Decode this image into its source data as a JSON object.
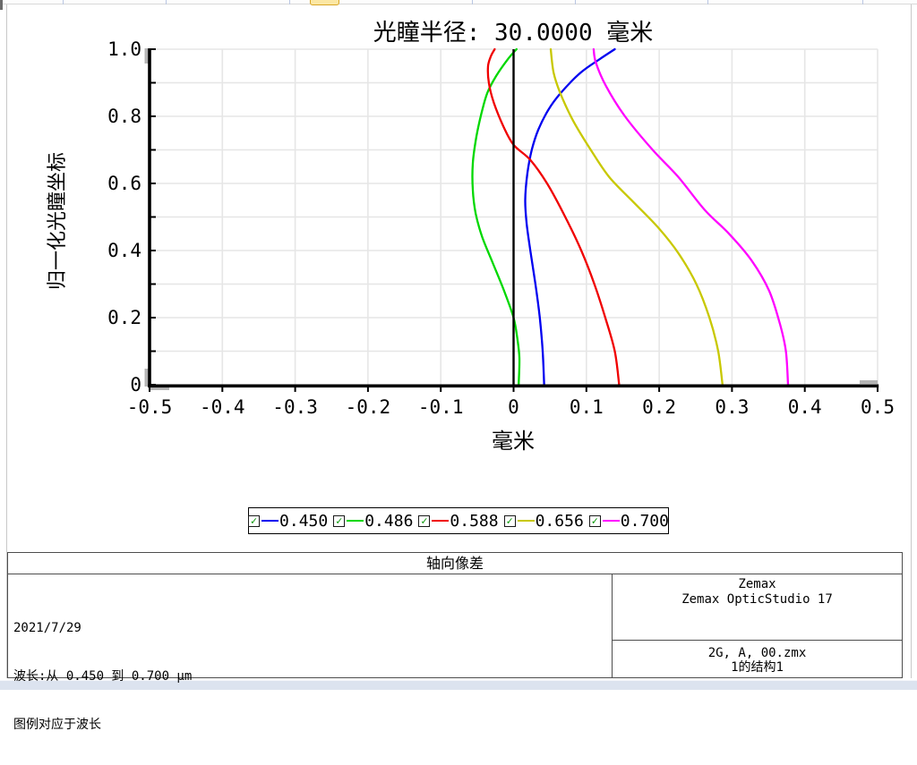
{
  "chart": {
    "title": "光瞳半径: 30.0000 毫米"
  },
  "chart_data": {
    "type": "line",
    "title": "光瞳半径: 30.0000 毫米",
    "xlabel": "毫米",
    "ylabel": "归一化光瞳坐标",
    "xlim": [
      -0.5,
      0.5
    ],
    "ylim": [
      0,
      1
    ],
    "grid": true,
    "legend_position": "bottom",
    "x_tick_labels": [
      "-0.5",
      "-0.4",
      "-0.3",
      "-0.2",
      "-0.1",
      "0",
      "0.1",
      "0.2",
      "0.3",
      "0.4",
      "0.5"
    ],
    "x_ticks": [
      -0.5,
      -0.4,
      -0.3,
      -0.2,
      -0.1,
      0,
      0.1,
      0.2,
      0.3,
      0.4,
      0.5
    ],
    "y_tick_labels": [
      "0",
      "0.2",
      "0.4",
      "0.6",
      "0.8",
      "1.0"
    ],
    "y_label_ticks": [
      0,
      0.2,
      0.4,
      0.6,
      0.8,
      1.0
    ],
    "y_minor_ticks": [
      0,
      0.1,
      0.2,
      0.3,
      0.4,
      0.5,
      0.6,
      0.7,
      0.8,
      0.9,
      1.0
    ],
    "zero_axis_x": 0,
    "series": [
      {
        "name": "0.450",
        "color": "#0000f0",
        "points": [
          [
            0.042,
            0.0
          ],
          [
            0.04,
            0.1
          ],
          [
            0.036,
            0.2
          ],
          [
            0.03,
            0.3
          ],
          [
            0.023,
            0.4
          ],
          [
            0.018,
            0.48
          ],
          [
            0.016,
            0.55
          ],
          [
            0.019,
            0.63
          ],
          [
            0.025,
            0.7
          ],
          [
            0.034,
            0.76
          ],
          [
            0.048,
            0.82
          ],
          [
            0.065,
            0.87
          ],
          [
            0.092,
            0.93
          ],
          [
            0.118,
            0.97
          ],
          [
            0.139,
            1.0
          ]
        ]
      },
      {
        "name": "0.486",
        "color": "#00d800",
        "points": [
          [
            0.007,
            0.0
          ],
          [
            0.008,
            0.08
          ],
          [
            0.005,
            0.14
          ],
          [
            0.0,
            0.2
          ],
          [
            -0.013,
            0.28
          ],
          [
            -0.028,
            0.36
          ],
          [
            -0.043,
            0.44
          ],
          [
            -0.052,
            0.51
          ],
          [
            -0.056,
            0.58
          ],
          [
            -0.056,
            0.66
          ],
          [
            -0.051,
            0.74
          ],
          [
            -0.044,
            0.81
          ],
          [
            -0.036,
            0.87
          ],
          [
            -0.024,
            0.92
          ],
          [
            -0.008,
            0.97
          ],
          [
            0.004,
            1.0
          ]
        ]
      },
      {
        "name": "0.588",
        "color": "#f00000",
        "points": [
          [
            0.145,
            0.0
          ],
          [
            0.139,
            0.1
          ],
          [
            0.126,
            0.2
          ],
          [
            0.111,
            0.3
          ],
          [
            0.093,
            0.4
          ],
          [
            0.071,
            0.5
          ],
          [
            0.046,
            0.6
          ],
          [
            0.023,
            0.67
          ],
          [
            0.0,
            0.715
          ],
          [
            -0.014,
            0.77
          ],
          [
            -0.027,
            0.84
          ],
          [
            -0.034,
            0.9
          ],
          [
            -0.035,
            0.95
          ],
          [
            -0.031,
            0.98
          ],
          [
            -0.026,
            1.0
          ]
        ]
      },
      {
        "name": "0.656",
        "color": "#c8c800",
        "points": [
          [
            0.287,
            0.0
          ],
          [
            0.281,
            0.1
          ],
          [
            0.269,
            0.2
          ],
          [
            0.251,
            0.3
          ],
          [
            0.227,
            0.39
          ],
          [
            0.198,
            0.47
          ],
          [
            0.162,
            0.55
          ],
          [
            0.131,
            0.62
          ],
          [
            0.106,
            0.7
          ],
          [
            0.081,
            0.79
          ],
          [
            0.064,
            0.87
          ],
          [
            0.055,
            0.93
          ],
          [
            0.051,
            1.0
          ]
        ]
      },
      {
        "name": "0.700",
        "color": "#ff00ff",
        "points": [
          [
            0.377,
            0.0
          ],
          [
            0.374,
            0.1
          ],
          [
            0.366,
            0.18
          ],
          [
            0.351,
            0.28
          ],
          [
            0.327,
            0.37
          ],
          [
            0.296,
            0.45
          ],
          [
            0.263,
            0.52
          ],
          [
            0.226,
            0.62
          ],
          [
            0.191,
            0.7
          ],
          [
            0.153,
            0.8
          ],
          [
            0.127,
            0.89
          ],
          [
            0.113,
            0.96
          ],
          [
            0.11,
            1.0
          ]
        ]
      }
    ]
  },
  "legend": {
    "checkbox_glyph": "✓",
    "items": [
      {
        "label": "0.450",
        "color": "#0000f0",
        "checked": true
      },
      {
        "label": "0.486",
        "color": "#00d800",
        "checked": true
      },
      {
        "label": "0.588",
        "color": "#f00000",
        "checked": true
      },
      {
        "label": "0.656",
        "color": "#c8c800",
        "checked": true
      },
      {
        "label": "0.700",
        "color": "#ff00ff",
        "checked": true
      }
    ]
  },
  "footer": {
    "caption": "轴向像差",
    "left_lines": [
      "2021/7/29",
      "波长:从 0.450 到 0.700 μm",
      "图例对应于波长"
    ],
    "right_top_lines": [
      "Zemax",
      "Zemax OpticStudio 17"
    ],
    "right_bottom_lines": [
      "2G, A, 00.zmx",
      "1的结构1"
    ]
  },
  "colors": {
    "grid": "#e6e6e6",
    "axis": "#000000",
    "axis_end_cap": "#b4b4b4",
    "table_border": "#4d4d4d",
    "window_bottom_strip": "#dce3ef",
    "tab_fragment_fill": "#fbe7a3",
    "tab_fragment_border": "#d9a625"
  }
}
